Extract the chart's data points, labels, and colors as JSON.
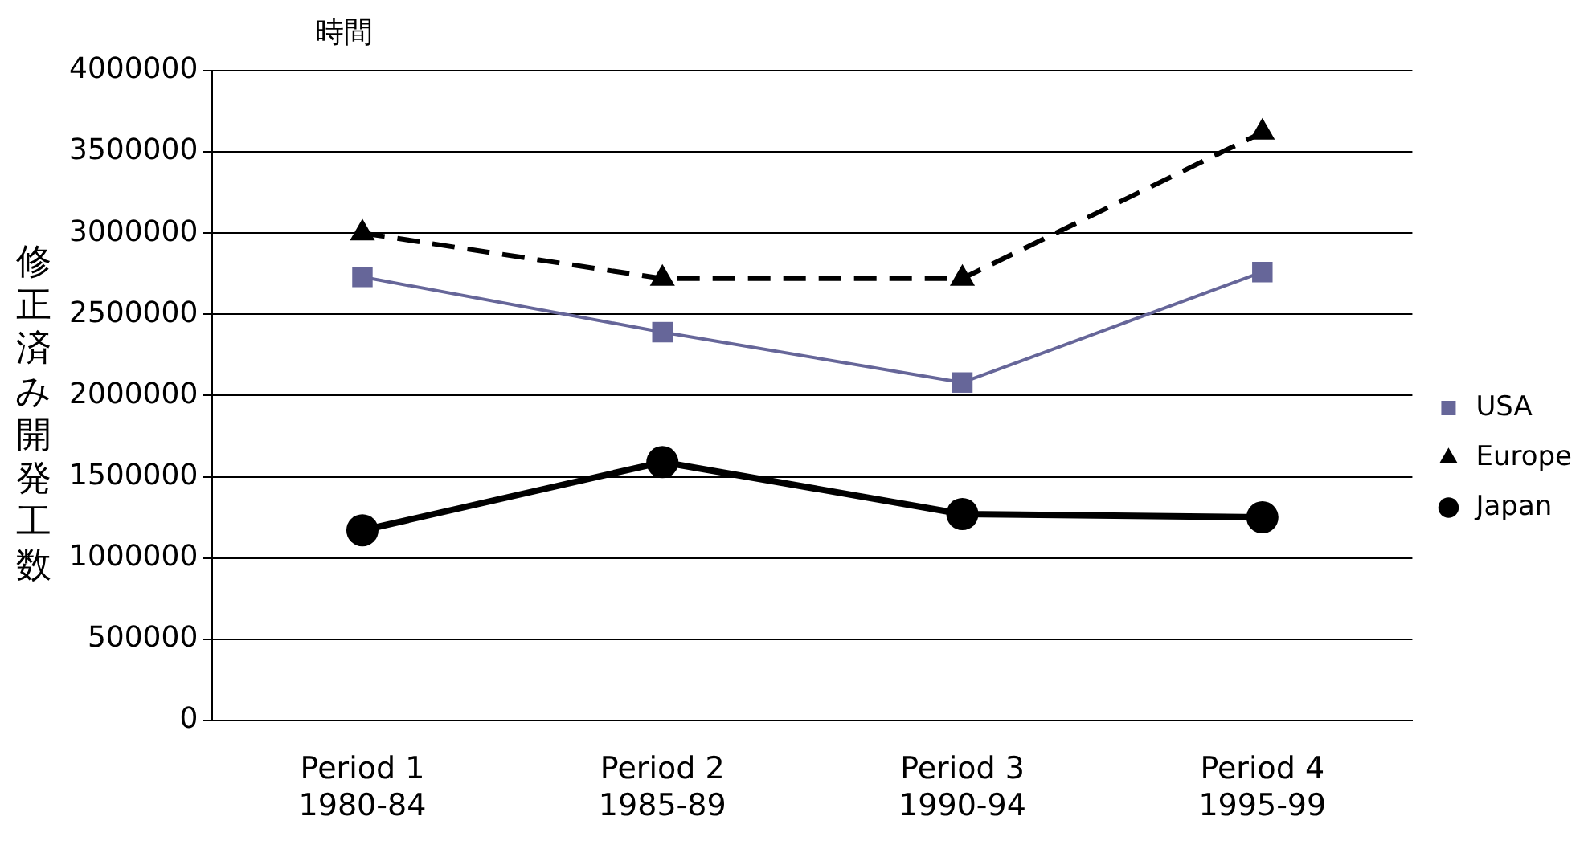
{
  "chart_data": {
    "type": "line",
    "ylabel": "修正済み開発工数",
    "annotations": [
      "時間"
    ],
    "categories": [
      "Period 1\n1980-84",
      "Period 2\n1985-89",
      "Period 3\n1990-94",
      "Period 4\n1995-99"
    ],
    "series": [
      {
        "name": "USA",
        "color": "#666699",
        "marker": "square",
        "line_style": "solid",
        "values": [
          2730000,
          2390000,
          2080000,
          2760000
        ]
      },
      {
        "name": "Europe",
        "color": "#000000",
        "marker": "triangle",
        "line_style": "dashed",
        "values": [
          3000000,
          2720000,
          2720000,
          3620000
        ]
      },
      {
        "name": "Japan",
        "color": "#000000",
        "marker": "circle",
        "line_style": "solid",
        "values": [
          1170000,
          1590000,
          1270000,
          1250000
        ]
      }
    ],
    "ylim": [
      0,
      4000000
    ],
    "yticks": [
      0,
      500000,
      1000000,
      1500000,
      2000000,
      2500000,
      3000000,
      3500000,
      4000000
    ],
    "grid": "y",
    "legend": "right"
  }
}
